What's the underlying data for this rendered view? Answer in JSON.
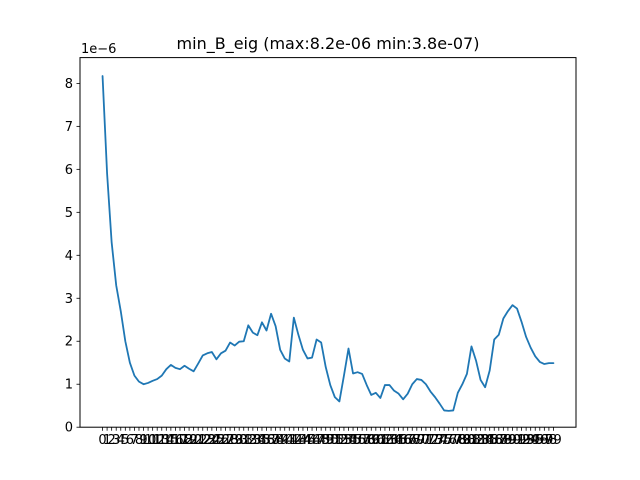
{
  "chart_data": {
    "type": "line",
    "title": "min_B_eig (max:8.2e-06 min:3.8e-07)",
    "xlabel": "",
    "ylabel": "",
    "y_offset_label": "1e−6",
    "y_scale": 1e-06,
    "ylim": [
      0,
      8.6
    ],
    "xlim": [
      -4.95,
      103.95
    ],
    "yticks": [
      0,
      1,
      2,
      3,
      4,
      5,
      6,
      7,
      8
    ],
    "xtick_values": [
      0,
      1,
      2,
      3,
      4,
      5,
      6,
      7,
      8,
      9,
      10,
      11,
      12,
      13,
      14,
      15,
      16,
      17,
      18,
      19,
      20,
      21,
      22,
      23,
      24,
      25,
      26,
      27,
      28,
      29,
      30,
      31,
      32,
      33,
      34,
      35,
      36,
      37,
      38,
      39,
      40,
      41,
      42,
      43,
      44,
      45,
      46,
      47,
      48,
      49,
      50,
      51,
      52,
      53,
      54,
      55,
      56,
      57,
      58,
      59,
      60,
      61,
      62,
      63,
      64,
      65,
      66,
      67,
      68,
      69,
      70,
      71,
      72,
      73,
      74,
      75,
      76,
      77,
      78,
      79,
      80,
      81,
      82,
      83,
      84,
      85,
      86,
      87,
      88,
      89,
      90,
      91,
      92,
      93,
      94,
      95,
      96,
      97,
      98,
      99
    ],
    "line_color": "#1f77b4",
    "grid": false,
    "series": [
      {
        "x": [
          0,
          1,
          2,
          3,
          4,
          5,
          6,
          7,
          8,
          9,
          10,
          11,
          12,
          13,
          14,
          15,
          16,
          17,
          18,
          19,
          20,
          21,
          22,
          23,
          24,
          25,
          26,
          27,
          28,
          29,
          30,
          31,
          32,
          33,
          34,
          35,
          36,
          37,
          38,
          39,
          40,
          41,
          42,
          43,
          44,
          45,
          46,
          47,
          48,
          49,
          50,
          51,
          52,
          53,
          54,
          55,
          56,
          57,
          58,
          59,
          60,
          61,
          62,
          63,
          64,
          65,
          66,
          67,
          68,
          69,
          70,
          71,
          72,
          73,
          74,
          75,
          76,
          77,
          78,
          79,
          80,
          81,
          82,
          83,
          84,
          85,
          86,
          87,
          88,
          89,
          90,
          91,
          92,
          93,
          94,
          95,
          96,
          97,
          98,
          99
        ],
        "values": [
          8.17,
          5.9,
          4.3,
          3.3,
          2.7,
          2.0,
          1.5,
          1.2,
          1.06,
          1.0,
          1.03,
          1.08,
          1.12,
          1.2,
          1.35,
          1.45,
          1.38,
          1.35,
          1.43,
          1.36,
          1.3,
          1.48,
          1.67,
          1.72,
          1.75,
          1.58,
          1.72,
          1.78,
          1.97,
          1.9,
          1.99,
          2.0,
          2.37,
          2.2,
          2.14,
          2.44,
          2.25,
          2.64,
          2.35,
          1.8,
          1.6,
          1.53,
          2.55,
          2.15,
          1.8,
          1.6,
          1.62,
          2.04,
          1.97,
          1.4,
          0.98,
          0.7,
          0.6,
          1.2,
          1.83,
          1.25,
          1.28,
          1.24,
          0.98,
          0.75,
          0.8,
          0.68,
          0.98,
          0.98,
          0.85,
          0.78,
          0.65,
          0.78,
          1.0,
          1.12,
          1.1,
          1.0,
          0.83,
          0.7,
          0.55,
          0.39,
          0.38,
          0.39,
          0.8,
          1.0,
          1.24,
          1.88,
          1.55,
          1.1,
          0.93,
          1.32,
          2.04,
          2.15,
          2.53,
          2.7,
          2.84,
          2.76,
          2.45,
          2.1,
          1.85,
          1.65,
          1.52,
          1.47,
          1.49,
          1.49
        ]
      }
    ]
  }
}
